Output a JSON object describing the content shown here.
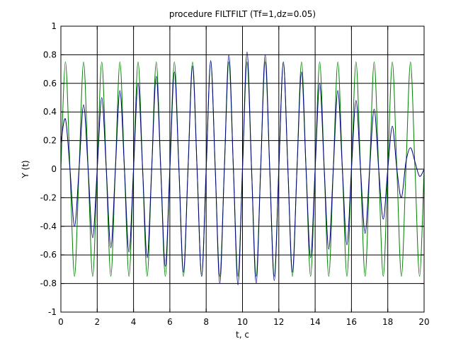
{
  "chart_data": {
    "type": "line",
    "title": "procedure FILTFILT (Tf=1,dz=0.05)",
    "xlabel": "t, c",
    "ylabel": "Y (t)",
    "xlim": [
      0,
      20
    ],
    "ylim": [
      -1,
      1
    ],
    "xticks": [
      0,
      2,
      4,
      6,
      8,
      10,
      12,
      14,
      16,
      18,
      20
    ],
    "yticks": [
      -1,
      -0.8,
      -0.6,
      -0.4,
      -0.2,
      0,
      0.2,
      0.4,
      0.6,
      0.8,
      1
    ],
    "xtick_labels": [
      "0",
      "2",
      "4",
      "6",
      "8",
      "10",
      "12",
      "14",
      "16",
      "18",
      "20"
    ],
    "ytick_labels": [
      "-1",
      "-0.8",
      "-0.6",
      "-0.4",
      "-0.2",
      "0",
      "0.2",
      "0.4",
      "0.6",
      "0.8",
      "1"
    ],
    "grid": true,
    "legend": false,
    "series": [
      {
        "color": "#007f00",
        "x": [
          0,
          0.25,
          0.5,
          0.75,
          1,
          1.25,
          1.5,
          1.75,
          2,
          2.25,
          2.5,
          2.75,
          3,
          3.25,
          3.5,
          3.75,
          4,
          4.25,
          4.5,
          4.75,
          5,
          5.25,
          5.5,
          5.75,
          6,
          6.25,
          6.5,
          6.75,
          7,
          7.25,
          7.5,
          7.75,
          8,
          8.25,
          8.5,
          8.75,
          9,
          9.25,
          9.5,
          9.75,
          10,
          10.25,
          10.5,
          10.75,
          11,
          11.25,
          11.5,
          11.75,
          12,
          12.25,
          12.5,
          12.75,
          13,
          13.25,
          13.5,
          13.75,
          14,
          14.25,
          14.5,
          14.75,
          15,
          15.25,
          15.5,
          15.75,
          16,
          16.25,
          16.5,
          16.75,
          17,
          17.25,
          17.5,
          17.75,
          18,
          18.25,
          18.5,
          18.75,
          19,
          19.25,
          19.5,
          19.75,
          20
        ],
        "y": [
          0,
          0.75,
          0,
          -0.75,
          0,
          0.75,
          0,
          -0.75,
          0,
          0.75,
          0,
          -0.75,
          0,
          0.75,
          0,
          -0.75,
          0,
          0.75,
          0,
          -0.75,
          0,
          0.75,
          0,
          -0.75,
          0,
          0.75,
          0,
          -0.75,
          0,
          0.75,
          0,
          -0.75,
          0,
          0.75,
          0,
          -0.75,
          0,
          0.75,
          0,
          -0.75,
          0,
          0.75,
          0,
          -0.75,
          0,
          0.75,
          0,
          -0.75,
          0,
          0.75,
          0,
          -0.75,
          0,
          0.75,
          0,
          -0.75,
          0,
          0.75,
          0,
          -0.75,
          0,
          0.75,
          0,
          -0.75,
          0,
          0.75,
          0,
          -0.75,
          0,
          0.75,
          0,
          -0.75,
          0,
          0.75,
          0,
          -0.75,
          0,
          0.75,
          0,
          -0.75,
          0
        ]
      },
      {
        "color": "#00007f",
        "x": [
          0,
          0.25,
          0.5,
          0.75,
          1,
          1.25,
          1.5,
          1.75,
          2,
          2.25,
          2.5,
          2.75,
          3,
          3.25,
          3.5,
          3.75,
          4,
          4.25,
          4.5,
          4.75,
          5,
          5.25,
          5.5,
          5.75,
          6,
          6.25,
          6.5,
          6.75,
          7,
          7.25,
          7.5,
          7.75,
          8,
          8.25,
          8.5,
          8.75,
          9,
          9.25,
          9.5,
          9.75,
          10,
          10.25,
          10.5,
          10.75,
          11,
          11.25,
          11.5,
          11.75,
          12,
          12.25,
          12.5,
          12.75,
          13,
          13.25,
          13.5,
          13.75,
          14,
          14.25,
          14.5,
          14.75,
          15,
          15.25,
          15.5,
          15.75,
          16,
          16.25,
          16.5,
          16.75,
          17,
          17.25,
          17.5,
          17.75,
          18,
          18.25,
          18.5,
          18.75,
          19,
          19.25,
          19.5,
          19.75,
          20
        ],
        "y": [
          0.18,
          0.35,
          0,
          -0.4,
          0,
          0.45,
          0,
          -0.48,
          0,
          0.5,
          0,
          -0.55,
          0,
          0.55,
          0,
          -0.58,
          0,
          0.6,
          0,
          -0.62,
          0,
          0.65,
          0,
          -0.68,
          0,
          0.68,
          0,
          -0.72,
          0,
          0.72,
          0,
          -0.75,
          0,
          0.76,
          0,
          -0.8,
          0,
          0.8,
          0,
          -0.81,
          0,
          0.82,
          0,
          -0.8,
          0,
          0.8,
          0,
          -0.78,
          0,
          0.75,
          0,
          -0.72,
          0,
          0.68,
          0,
          -0.62,
          0,
          0.6,
          0,
          -0.56,
          0,
          0.55,
          0,
          -0.53,
          0,
          0.48,
          0,
          -0.45,
          0,
          0.42,
          0,
          -0.35,
          0,
          0.3,
          0,
          -0.2,
          0.05,
          0.15,
          0.05,
          -0.05,
          0
        ]
      }
    ]
  }
}
